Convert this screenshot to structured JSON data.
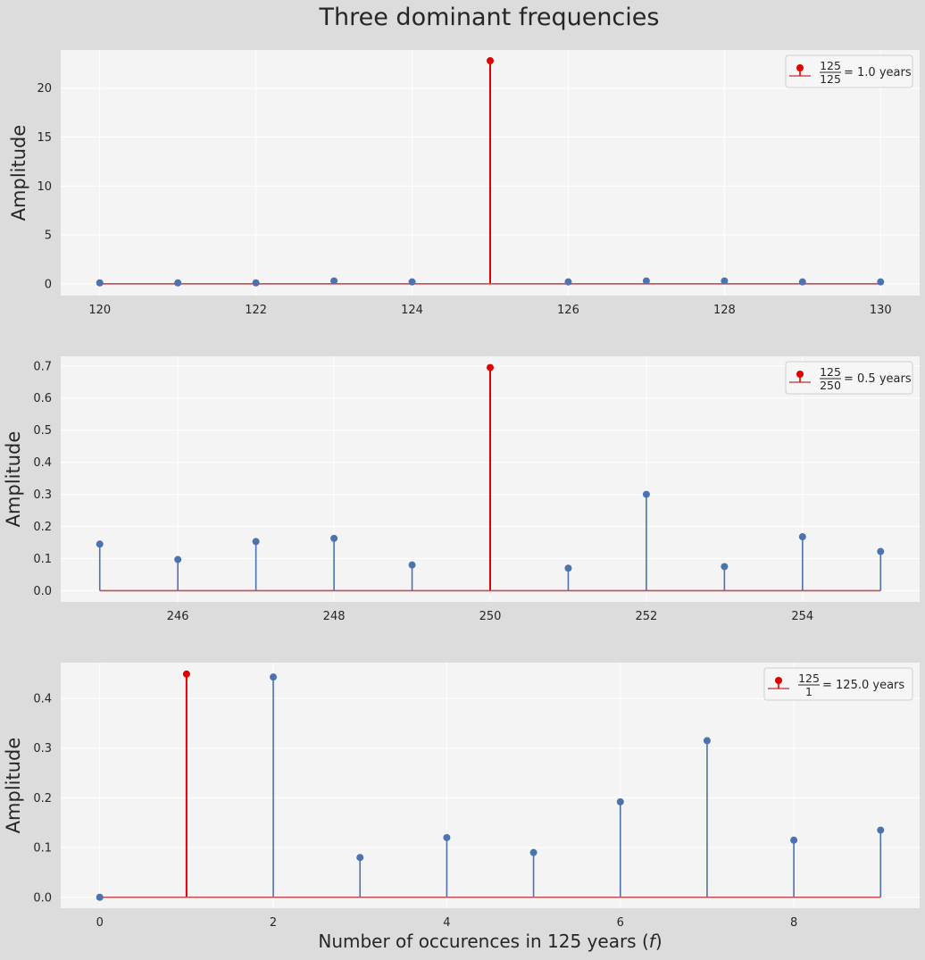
{
  "title": "Three dominant frequencies",
  "colors": {
    "figure_bg": "#dcdcdc",
    "axes_bg": "#f4f4f4",
    "grid": "#ffffff",
    "stem": "#4c72b0",
    "highlight": "#e00000",
    "baseline": "#c44e52",
    "text": "#262626"
  },
  "chart_data": [
    {
      "type": "stem",
      "ylabel": "Amplitude",
      "xlabel": "",
      "xlim": [
        119.5,
        130.5
      ],
      "ylim": [
        -1.2,
        23.9
      ],
      "xticks": [
        "120",
        "122",
        "124",
        "126",
        "128",
        "130"
      ],
      "yticks": [
        "0",
        "5",
        "10",
        "15",
        "20"
      ],
      "grid": true,
      "x": [
        120,
        121,
        122,
        123,
        124,
        125,
        126,
        127,
        128,
        129,
        130
      ],
      "values": [
        0.1,
        0.1,
        0.1,
        0.3,
        0.2,
        22.8,
        0.2,
        0.3,
        0.3,
        0.2,
        0.2
      ],
      "highlight": {
        "x": 125,
        "y": 22.8
      },
      "legend": {
        "position": "top-right",
        "num": "125",
        "den": "125",
        "suffix": "= 1.0 years"
      }
    },
    {
      "type": "stem",
      "ylabel": "Amplitude",
      "xlabel": "",
      "xlim": [
        244.5,
        255.5
      ],
      "ylim": [
        -0.035,
        0.73
      ],
      "xticks": [
        "246",
        "248",
        "250",
        "252",
        "254"
      ],
      "yticks": [
        "0.0",
        "0.1",
        "0.2",
        "0.3",
        "0.4",
        "0.5",
        "0.6",
        "0.7"
      ],
      "grid": true,
      "x": [
        245,
        246,
        247,
        248,
        249,
        250,
        251,
        252,
        253,
        254,
        255
      ],
      "values": [
        0.145,
        0.097,
        0.153,
        0.163,
        0.08,
        0.695,
        0.07,
        0.3,
        0.075,
        0.168,
        0.122
      ],
      "highlight": {
        "x": 250,
        "y": 0.695
      },
      "legend": {
        "position": "top-right",
        "num": "125",
        "den": "250",
        "suffix": "= 0.5 years"
      }
    },
    {
      "type": "stem",
      "ylabel": "Amplitude",
      "xlabel": "Number of occurences in 125 years (",
      "xlabel_var": "f",
      "xlabel_end": ")",
      "xlim": [
        -0.45,
        9.45
      ],
      "ylim": [
        -0.022,
        0.472
      ],
      "xticks": [
        "0",
        "2",
        "4",
        "6",
        "8"
      ],
      "yticks": [
        "0.0",
        "0.1",
        "0.2",
        "0.3",
        "0.4"
      ],
      "grid": true,
      "x": [
        0,
        1,
        2,
        3,
        4,
        5,
        6,
        7,
        8,
        9
      ],
      "values": [
        0.0,
        0.449,
        0.443,
        0.08,
        0.12,
        0.09,
        0.192,
        0.315,
        0.115,
        0.135
      ],
      "highlight": {
        "x": 1,
        "y": 0.449
      },
      "legend": {
        "position": "top-right",
        "num": "125",
        "den": "1",
        "suffix": "= 125.0 years"
      }
    }
  ]
}
